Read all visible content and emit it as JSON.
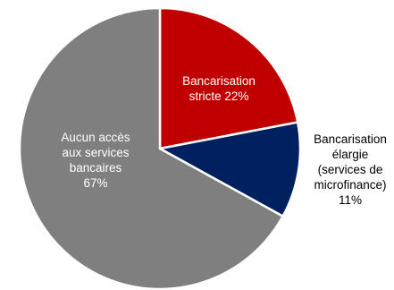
{
  "chart_data": {
    "type": "pie",
    "slices": [
      {
        "label_lines": [
          "Bancarisation",
          "stricte 22%"
        ],
        "value": 22,
        "color": "#c00000",
        "label_color": "#ffffff"
      },
      {
        "label_lines": [
          "Bancarisation",
          "élargie",
          "(services de",
          "microfinance)",
          "11%"
        ],
        "value": 11,
        "color": "#002060",
        "label_color": "#000000"
      },
      {
        "label_lines": [
          "Aucun accès",
          "aux services",
          "bancaires",
          "67%"
        ],
        "value": 67,
        "color": "#7f7f7f",
        "label_color": "#ffffff"
      }
    ]
  }
}
